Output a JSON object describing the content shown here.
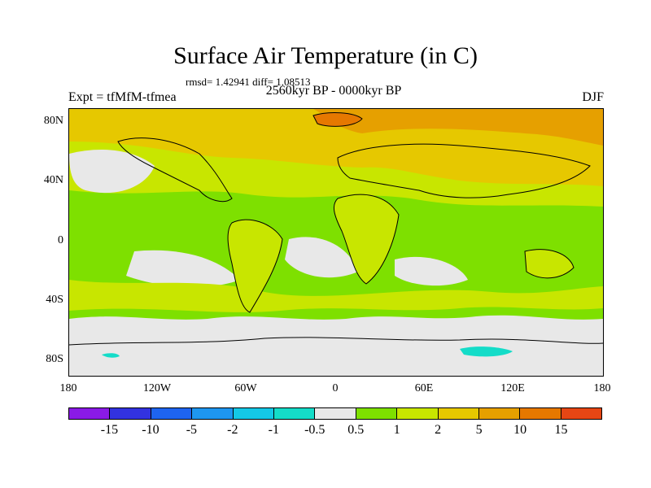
{
  "title": "Surface Air Temperature (in C)",
  "stats_line": "rmsd= 1.42941 diff= 1.08513",
  "experiment": "Expt = tfMfM-tfmea",
  "period": "2560kyr BP - 0000kyr BP",
  "season": "DJF",
  "map": {
    "lat_ticks": [
      "80N",
      "40N",
      "0",
      "40S",
      "80S"
    ],
    "lon_ticks": [
      "180",
      "120W",
      "60W",
      "0",
      "60E",
      "120E",
      "180"
    ],
    "lat_range": [
      -90,
      90
    ],
    "lon_range": [
      -180,
      180
    ]
  },
  "colorbar": {
    "colors": [
      "#8a1ae6",
      "#3232e0",
      "#1e64f0",
      "#1e96f0",
      "#14c8e6",
      "#14dcc8",
      "#e8e8e8",
      "#7ee000",
      "#c8e600",
      "#e6c800",
      "#e6a000",
      "#e67800",
      "#e64614"
    ],
    "labels": [
      "-15",
      "-10",
      "-5",
      "-2",
      "-1",
      "-0.5",
      "0.5",
      "1",
      "2",
      "5",
      "10",
      "15"
    ]
  },
  "field_colors": {
    "neutral": "#e8e8e8",
    "light_green": "#7ee000",
    "yellow_green": "#c8e600",
    "yellow": "#e6c800",
    "orange": "#e6a000",
    "dark_orange": "#e67800",
    "cyan": "#14dcc8",
    "land_outline": "#000000"
  }
}
